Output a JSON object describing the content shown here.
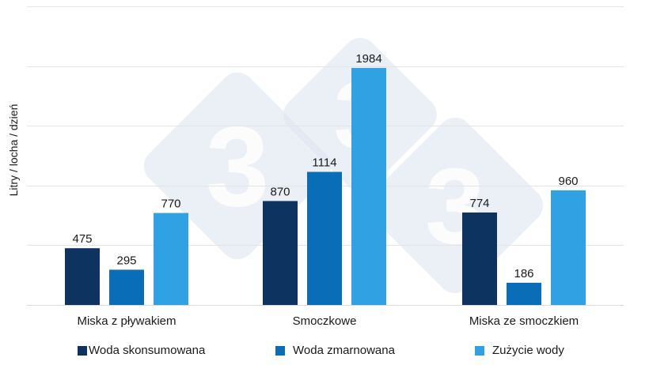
{
  "chart_data": {
    "type": "bar",
    "ylabel": "Litry / locha / dzień",
    "categories": [
      "Miska z pływakiem",
      "Smoczkowe",
      "Miska ze smoczkiem"
    ],
    "series": [
      {
        "name": "Woda skonsumowana",
        "color": "#0d3461",
        "values": [
          475,
          870,
          774
        ]
      },
      {
        "name": "Woda zmarnowana",
        "color": "#0a6db7",
        "values": [
          295,
          1114,
          186
        ]
      },
      {
        "name": "Zużycie wody",
        "color": "#30a1e3",
        "values": [
          770,
          1984,
          960
        ]
      }
    ],
    "ylim": [
      0,
      2500
    ],
    "grid": true,
    "legend_position": "bottom",
    "watermark": "333"
  }
}
